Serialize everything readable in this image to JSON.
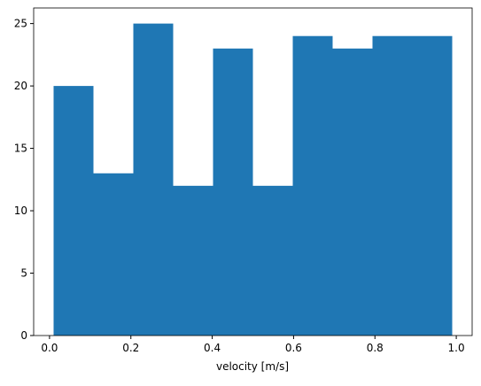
{
  "chart_data": {
    "type": "histogram",
    "x_label": "velocity [m/s]",
    "bins": [
      0.01,
      0.108,
      0.206,
      0.304,
      0.402,
      0.5,
      0.598,
      0.696,
      0.794,
      0.892,
      0.99
    ],
    "values": [
      20,
      13,
      25,
      12,
      23,
      12,
      24,
      23,
      24,
      24
    ],
    "color": "#1f77b4",
    "xlim": [
      -0.039,
      1.039
    ],
    "xticks": [
      0.0,
      0.2,
      0.4,
      0.6,
      0.8,
      1.0
    ],
    "ylim": [
      0,
      26.25
    ],
    "yticks": [
      0,
      5,
      10,
      15,
      20,
      25
    ],
    "grid": false
  }
}
